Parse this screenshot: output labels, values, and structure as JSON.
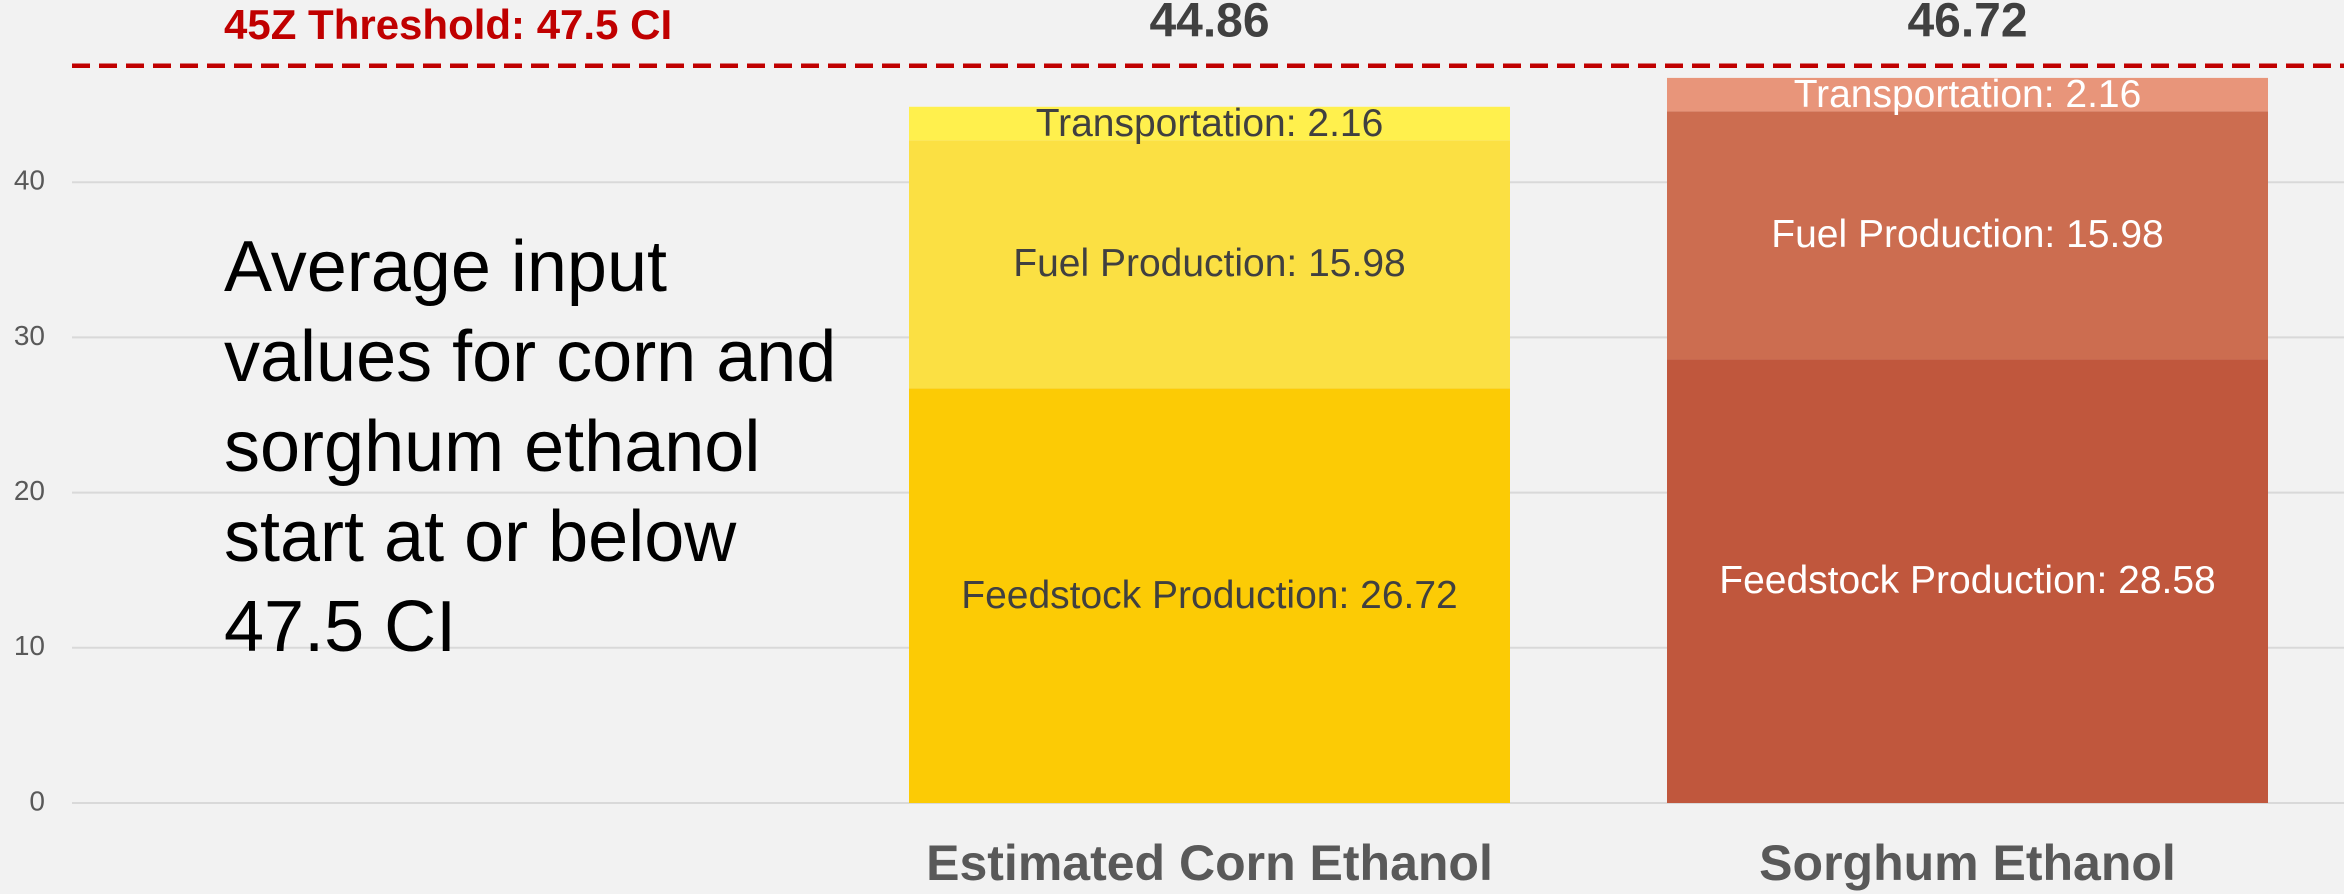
{
  "chart_data": {
    "type": "stacked_bar",
    "categories": [
      "Estimated Corn Ethanol",
      "Sorghum Ethanol"
    ],
    "series": [
      {
        "name": "Feedstock Production",
        "colors": [
          "#fccb05",
          "#c0573d"
        ],
        "values": [
          26.72,
          28.58
        ],
        "value_labels": [
          "Feedstock Production: 26.72",
          "Feedstock Production: 28.58"
        ]
      },
      {
        "name": "Fuel Production",
        "colors": [
          "#fbe043",
          "#cc6d50"
        ],
        "values": [
          15.98,
          15.98
        ],
        "value_labels": [
          "Fuel Production: 15.98",
          "Fuel Production: 15.98"
        ]
      },
      {
        "name": "Transportation",
        "colors": [
          "#fff04d",
          "#e8957a"
        ],
        "values": [
          2.16,
          2.16
        ],
        "value_labels": [
          "Transportation: 2.16",
          "Transportation: 2.16"
        ]
      }
    ],
    "label_colors": [
      "#404040",
      "#ffffff"
    ],
    "totals": [
      44.86,
      46.72
    ],
    "threshold": {
      "value": 47.5,
      "label": "45Z Threshold: 47.5 CI",
      "color": "#c00000"
    },
    "annotation": "Average input values for corn and sorghum ethanol start at or below 47.5 CI",
    "ylim": [
      0,
      50
    ],
    "yticks": [
      0,
      10,
      20,
      30,
      40
    ],
    "grid": true
  }
}
